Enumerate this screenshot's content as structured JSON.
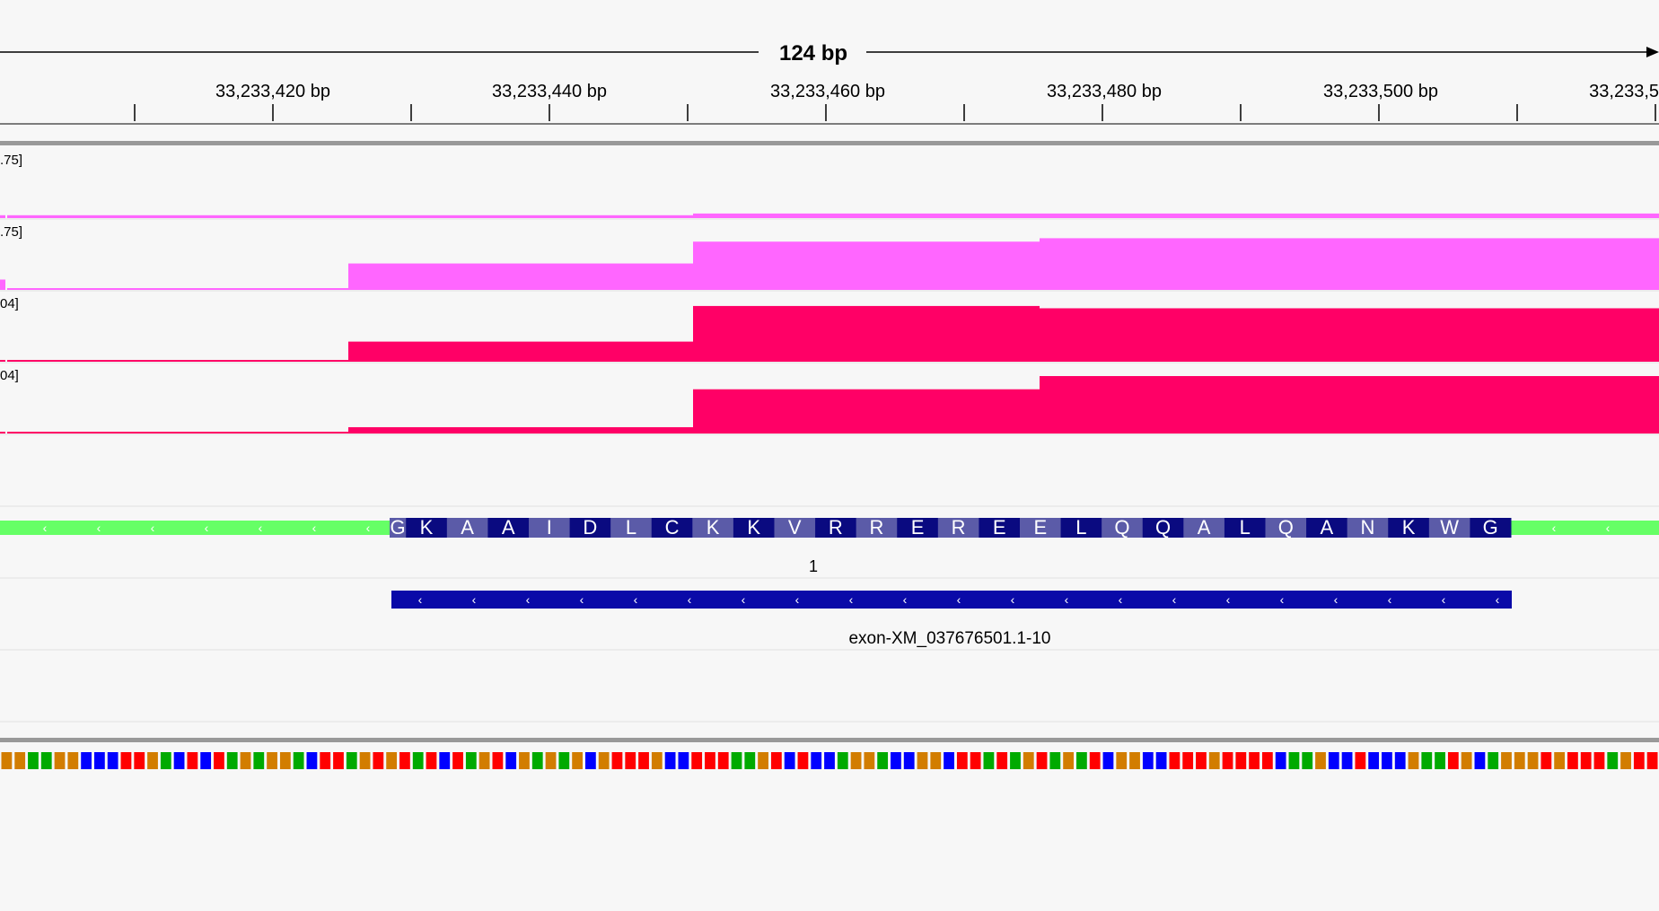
{
  "ruler": {
    "span_label": "124 bp",
    "ticks": [
      "33,233,420 bp",
      "33,233,440 bp",
      "33,233,460 bp",
      "33,233,480 bp",
      "33,233,500 bp",
      "33,233,5"
    ]
  },
  "tracks": [
    {
      "range_label": ".75]",
      "color": "#ff66ff",
      "levels": [
        0.05,
        0.05,
        0.05,
        0.08,
        0.08,
        0.08,
        0.08
      ]
    },
    {
      "range_label": ".75]",
      "color": "#ff66ff",
      "levels": [
        0.18,
        0.03,
        0.46,
        0.84,
        0.9,
        0.9,
        0.59
      ]
    },
    {
      "range_label": "04]",
      "color": "#ff0066",
      "levels": [
        0.02,
        0.02,
        0.35,
        0.97,
        0.93,
        0.93,
        0.87
      ]
    },
    {
      "range_label": "04]",
      "color": "#ff0066",
      "levels": [
        0.0,
        0.0,
        0.11,
        0.77,
        1.0,
        1.0,
        1.0
      ]
    }
  ],
  "gene": {
    "amino_acids": [
      "G",
      "K",
      "A",
      "A",
      "I",
      "D",
      "L",
      "C",
      "K",
      "K",
      "V",
      "R",
      "R",
      "E",
      "R",
      "E",
      "E",
      "L",
      "Q",
      "Q",
      "A",
      "L",
      "Q",
      "A",
      "N",
      "K",
      "W",
      "G"
    ],
    "exon_number": "1",
    "exon_name": "exon-XM_037676501.1-10",
    "utr_color": "#66ff66",
    "aa_dark": "#0a0a80",
    "aa_light": "#5b5ba8",
    "exon_color": "#0a0aa8",
    "strand_glyph": "‹"
  },
  "sequence": {
    "bases": "GGAAGGCCCTTGACTCTAGAGGACTTAGTGTATCTAGTCGAGAGCGTTTGCCTTTAAGTCTCCAGGACCGGCTTATAGTAGATCGGCCTTTGTTTTCAAGCCTCCCGAATGCAGGGTGTTTAGTT",
    "colors": {
      "A": "#00aa00",
      "C": "#0000ff",
      "G": "#d27d00",
      "T": "#ff0000"
    }
  }
}
